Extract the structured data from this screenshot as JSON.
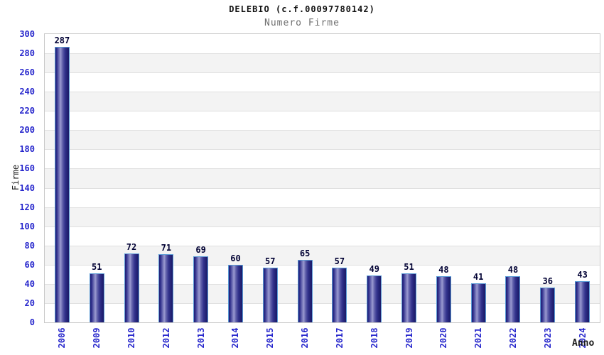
{
  "header": {
    "title": "DELEBIO (c.f.00097780142)",
    "subtitle": "Numero Firme"
  },
  "chart_data": {
    "type": "bar",
    "title": "DELEBIO (c.f.00097780142)",
    "subtitle": "Numero Firme",
    "xlabel": "Anno",
    "ylabel": "Firme",
    "categories": [
      "2006",
      "2009",
      "2010",
      "2012",
      "2013",
      "2014",
      "2015",
      "2016",
      "2017",
      "2018",
      "2019",
      "2020",
      "2021",
      "2022",
      "2023",
      "2024"
    ],
    "values": [
      287,
      51,
      72,
      71,
      69,
      60,
      57,
      65,
      57,
      49,
      51,
      48,
      41,
      48,
      36,
      43
    ],
    "ylim": [
      0,
      300
    ],
    "ytick_step": 20,
    "grid": "horizontal gridlines with alternating white/gray bands",
    "legend": "none",
    "colors": {
      "bar_dark": "#1e1e74",
      "bar_highlight": "#9a9ad0",
      "bar_border": "#5b9bd5",
      "axis_tick_text": "#2626cc",
      "value_label_text": "#000033",
      "band_alternate": "#f3f3f3",
      "gridline": "#e0e0e0",
      "plot_border": "#c9c9c9",
      "title_text": "#111111",
      "subtitle_text": "#6e6e6e",
      "axis_title_text": "#1a1a1a"
    }
  }
}
